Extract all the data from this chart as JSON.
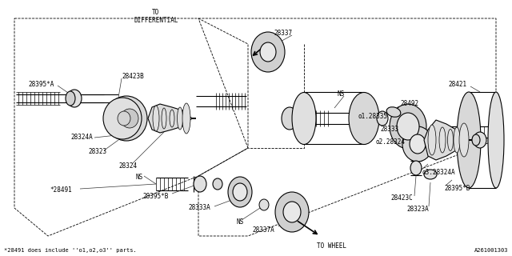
{
  "bg_color": "#ffffff",
  "line_color": "#000000",
  "footnote": "*28491 does include ''o1,o2,o3'' parts.",
  "part_code": "A261001303",
  "to_differential": "TO\nDIFFERENTIAL",
  "to_wheel": "TO WHEEL",
  "fig_width": 6.4,
  "fig_height": 3.2,
  "dpi": 100,
  "lw_main": 0.8,
  "lw_thin": 0.5,
  "lw_dash": 0.6,
  "font_size_label": 5.5,
  "font_size_footer": 5.0
}
